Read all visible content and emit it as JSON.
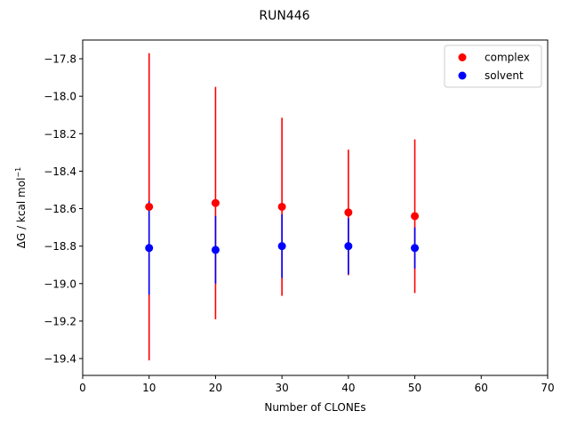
{
  "chart_data": {
    "type": "scatter",
    "title": "RUN446",
    "xlabel": "Number of CLONEs",
    "ylabel": "ΔG / kcal mol",
    "ylabel_superscript": "−1",
    "xlim": [
      0,
      70
    ],
    "ylim": [
      -19.49,
      -17.7
    ],
    "xticks": [
      0,
      10,
      20,
      30,
      40,
      50,
      60,
      70
    ],
    "xtick_labels": [
      "0",
      "10",
      "20",
      "30",
      "40",
      "50",
      "60",
      "70"
    ],
    "yticks": [
      -19.4,
      -19.2,
      -19.0,
      -18.8,
      -18.6,
      -18.4,
      -18.2,
      -18.0,
      -17.8
    ],
    "ytick_labels": [
      "−19.4",
      "−19.2",
      "−19.0",
      "−18.8",
      "−18.6",
      "−18.4",
      "−18.2",
      "−18.0",
      "−17.8"
    ],
    "grid": false,
    "legend_position": "top-right",
    "series": [
      {
        "name": "complex",
        "color": "#ff0000",
        "x": [
          10,
          20,
          30,
          40,
          50
        ],
        "y": [
          -18.59,
          -18.57,
          -18.59,
          -18.62,
          -18.64
        ],
        "yerr": [
          0.82,
          0.62,
          0.475,
          0.335,
          0.41
        ]
      },
      {
        "name": "solvent",
        "color": "#0000ff",
        "x": [
          10,
          20,
          30,
          40,
          50
        ],
        "y": [
          -18.81,
          -18.82,
          -18.8,
          -18.8,
          -18.81
        ],
        "yerr": [
          0.25,
          0.18,
          0.17,
          0.15,
          0.11
        ]
      }
    ]
  }
}
